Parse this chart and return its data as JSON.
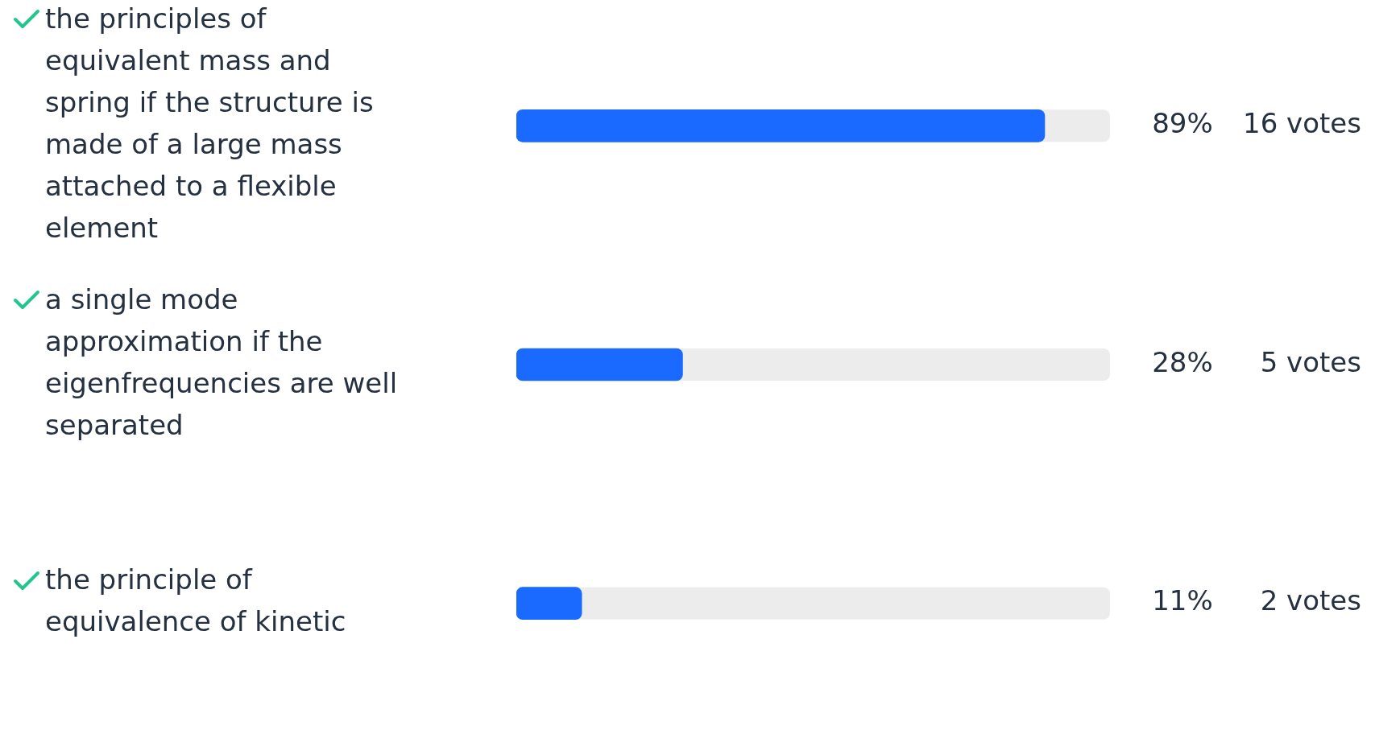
{
  "chart_data": {
    "type": "bar",
    "orientation": "horizontal",
    "categories": [
      "the principles of equivalent mass and spring if the structure is made of a large mass attached to a flexible element",
      "a single mode approximation if the eigenfrequencies are well separated",
      "the principle of equivalence of kinetic"
    ],
    "values": [
      89,
      28,
      11
    ],
    "color": "#1a6aff",
    "value_labels": [
      "89%",
      "28%",
      "11%"
    ],
    "xlim": [
      0,
      100
    ],
    "tick_labels": "y",
    "annotations": [
      "16 votes",
      "5 votes",
      "2 votes"
    ]
  }
}
